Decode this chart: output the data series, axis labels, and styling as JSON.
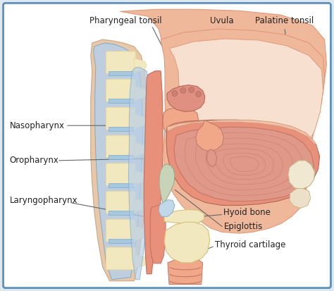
{
  "background_color": "#dde8f0",
  "inner_bg": "#ffffff",
  "border_color": "#6090b8",
  "labels": {
    "pharyngeal_tonsil": "Pharyngeal tonsil",
    "uvula": "Uvula",
    "palatine_tonsil": "Palatine tonsil",
    "nasopharynx": "Nasopharynx",
    "oropharynx": "Oropharynx",
    "laryngopharynx": "Laryngopharynx",
    "hyoid_bone": "Hyoid bone",
    "epiglottis": "Epiglottis",
    "thyroid_cartilage": "Thyroid cartilage"
  },
  "skin_pale": "#f5cdb8",
  "skin_med": "#f0b89a",
  "skin_dark": "#e09a7a",
  "throat_pink": "#e8907a",
  "throat_light": "#f0a888",
  "tongue_muscle": "#cc8870",
  "tongue_dark": "#bb7060",
  "bone_yellow": "#e8d8a0",
  "bone_light": "#f2e8c0",
  "cartilage_tan": "#d4c078",
  "disc_blue": "#a8c8e0",
  "fascia_blue": "#b8d0e8",
  "fascia_dark": "#7aaac8",
  "spine_bg": "#e0c898",
  "label_color": "#222222",
  "line_color": "#666666",
  "font_size": 8.5
}
